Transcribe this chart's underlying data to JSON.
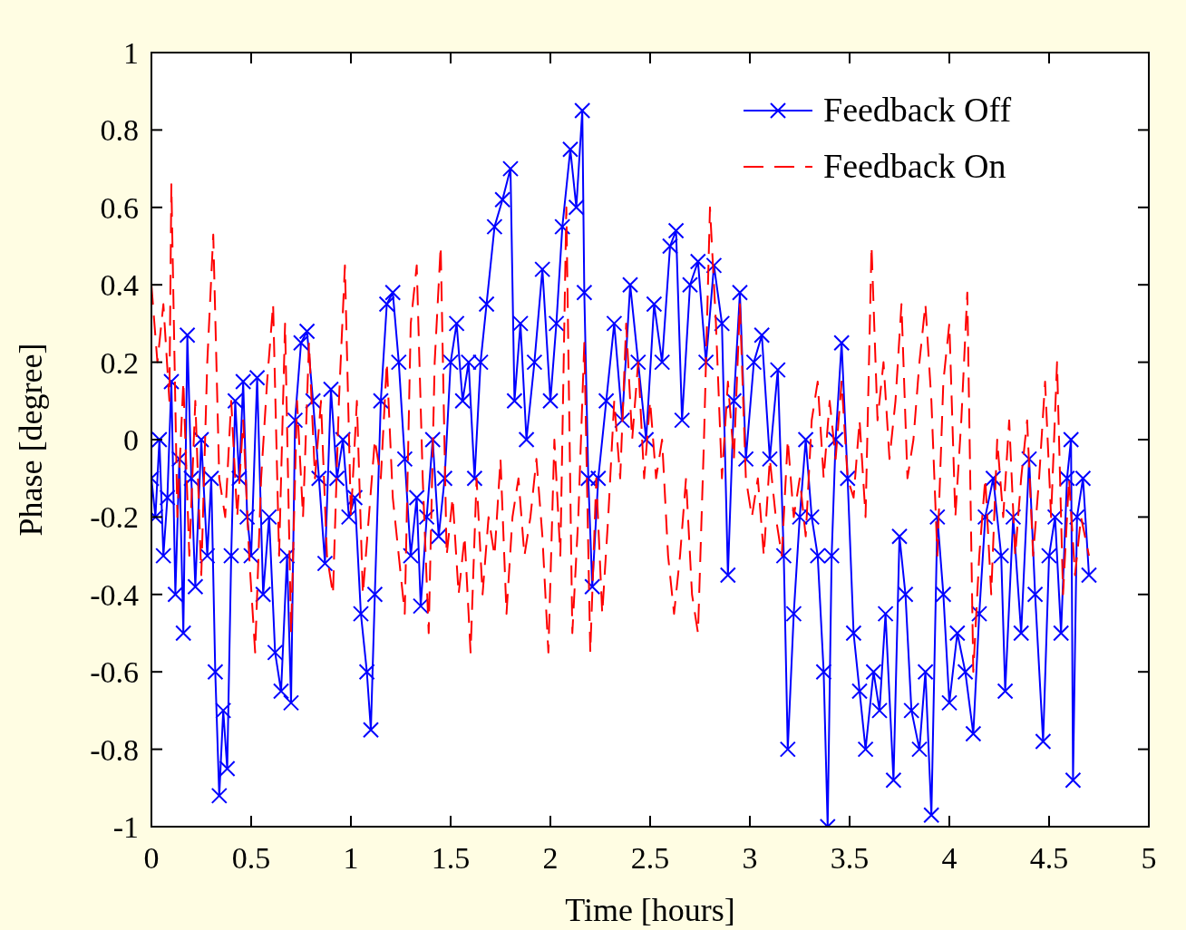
{
  "chart_data": {
    "type": "line",
    "xlabel": "Time [hours]",
    "ylabel": "Phase [degree]",
    "xlim": [
      0,
      5
    ],
    "ylim": [
      -1,
      1
    ],
    "xticks": [
      0,
      0.5,
      1,
      1.5,
      2,
      2.5,
      3,
      3.5,
      4,
      4.5,
      5
    ],
    "yticks": [
      -1,
      -0.8,
      -0.6,
      -0.4,
      -0.2,
      0,
      0.2,
      0.4,
      0.6,
      0.8,
      1
    ],
    "grid": false,
    "legend": "top right",
    "series": [
      {
        "name": "Feedback Off",
        "color": "#0000ff",
        "marker": "cross",
        "line_style": "solid",
        "x": [
          0,
          0.02,
          0.04,
          0.06,
          0.08,
          0.1,
          0.12,
          0.14,
          0.16,
          0.18,
          0.2,
          0.22,
          0.25,
          0.28,
          0.3,
          0.32,
          0.34,
          0.36,
          0.38,
          0.4,
          0.42,
          0.44,
          0.46,
          0.48,
          0.5,
          0.53,
          0.56,
          0.59,
          0.62,
          0.65,
          0.68,
          0.7,
          0.72,
          0.75,
          0.78,
          0.81,
          0.84,
          0.87,
          0.9,
          0.93,
          0.96,
          0.99,
          1.02,
          1.05,
          1.08,
          1.1,
          1.12,
          1.15,
          1.18,
          1.21,
          1.24,
          1.27,
          1.3,
          1.33,
          1.35,
          1.38,
          1.41,
          1.44,
          1.47,
          1.5,
          1.53,
          1.56,
          1.59,
          1.62,
          1.65,
          1.68,
          1.72,
          1.76,
          1.8,
          1.82,
          1.85,
          1.88,
          1.92,
          1.96,
          2,
          2.03,
          2.06,
          2.1,
          2.13,
          2.16,
          2.17,
          2.19,
          2.21,
          2.24,
          2.28,
          2.32,
          2.36,
          2.4,
          2.44,
          2.48,
          2.52,
          2.56,
          2.6,
          2.63,
          2.66,
          2.7,
          2.74,
          2.78,
          2.82,
          2.86,
          2.89,
          2.92,
          2.95,
          2.98,
          3.02,
          3.06,
          3.1,
          3.14,
          3.17,
          3.19,
          3.22,
          3.25,
          3.28,
          3.31,
          3.34,
          3.37,
          3.39,
          3.41,
          3.43,
          3.46,
          3.49,
          3.52,
          3.55,
          3.58,
          3.62,
          3.65,
          3.68,
          3.72,
          3.75,
          3.78,
          3.81,
          3.85,
          3.88,
          3.91,
          3.94,
          3.97,
          4,
          4.04,
          4.08,
          4.12,
          4.15,
          4.18,
          4.22,
          4.26,
          4.28,
          4.32,
          4.36,
          4.4,
          4.43,
          4.47,
          4.5,
          4.53,
          4.56,
          4.59,
          4.61,
          4.62,
          4.64,
          4.67,
          4.7
        ],
        "values": [
          -0.1,
          -0.2,
          0,
          -0.3,
          -0.15,
          0.15,
          -0.4,
          -0.05,
          -0.5,
          0.27,
          -0.1,
          -0.38,
          0,
          -0.3,
          -0.1,
          -0.6,
          -0.92,
          -0.7,
          -0.85,
          -0.3,
          0.1,
          -0.1,
          0.15,
          -0.2,
          -0.3,
          0.16,
          -0.4,
          -0.2,
          -0.55,
          -0.65,
          -0.3,
          -0.68,
          0.05,
          0.25,
          0.28,
          0.1,
          -0.1,
          -0.32,
          0.13,
          -0.1,
          0,
          -0.2,
          -0.15,
          -0.45,
          -0.6,
          -0.75,
          -0.4,
          0.1,
          0.35,
          0.38,
          0.2,
          -0.05,
          -0.3,
          -0.15,
          -0.43,
          -0.2,
          0,
          -0.25,
          -0.1,
          0.2,
          0.3,
          0.1,
          0.2,
          -0.1,
          0.2,
          0.35,
          0.55,
          0.62,
          0.7,
          0.1,
          0.3,
          0,
          0.2,
          0.44,
          0.1,
          0.3,
          0.55,
          0.75,
          0.6,
          0.85,
          0.38,
          -0.1,
          -0.38,
          -0.1,
          0.1,
          0.3,
          0.05,
          0.4,
          0.2,
          0,
          0.35,
          0.2,
          0.5,
          0.54,
          0.05,
          0.4,
          0.46,
          0.2,
          0.45,
          0.3,
          -0.35,
          0.1,
          0.38,
          -0.05,
          0.2,
          0.27,
          -0.05,
          0.18,
          -0.3,
          -0.8,
          -0.45,
          -0.2,
          0,
          -0.2,
          -0.3,
          -0.6,
          -1,
          -0.3,
          0,
          0.25,
          -0.1,
          -0.5,
          -0.65,
          -0.8,
          -0.6,
          -0.7,
          -0.45,
          -0.88,
          -0.25,
          -0.4,
          -0.7,
          -0.8,
          -0.6,
          -0.97,
          -0.2,
          -0.4,
          -0.68,
          -0.5,
          -0.6,
          -0.76,
          -0.45,
          -0.2,
          -0.1,
          -0.3,
          -0.65,
          -0.2,
          -0.5,
          -0.05,
          -0.4,
          -0.78,
          -0.3,
          -0.2,
          -0.5,
          -0.1,
          0,
          -0.88,
          -0.2,
          -0.1,
          -0.35
        ]
      },
      {
        "name": "Feedback On",
        "color": "#ff0000",
        "marker": "none",
        "line_style": "dashed",
        "x": [
          0,
          0.03,
          0.06,
          0.09,
          0.1,
          0.13,
          0.16,
          0.19,
          0.22,
          0.25,
          0.28,
          0.31,
          0.34,
          0.37,
          0.4,
          0.43,
          0.46,
          0.49,
          0.52,
          0.55,
          0.58,
          0.61,
          0.64,
          0.67,
          0.7,
          0.73,
          0.76,
          0.79,
          0.82,
          0.85,
          0.88,
          0.91,
          0.94,
          0.97,
          1,
          1.03,
          1.06,
          1.09,
          1.12,
          1.15,
          1.18,
          1.21,
          1.24,
          1.27,
          1.3,
          1.33,
          1.36,
          1.39,
          1.42,
          1.45,
          1.48,
          1.51,
          1.54,
          1.57,
          1.6,
          1.63,
          1.66,
          1.69,
          1.72,
          1.75,
          1.78,
          1.81,
          1.84,
          1.87,
          1.9,
          1.93,
          1.96,
          1.99,
          2.02,
          2.05,
          2.08,
          2.11,
          2.14,
          2.17,
          2.2,
          2.23,
          2.26,
          2.29,
          2.32,
          2.35,
          2.38,
          2.41,
          2.44,
          2.47,
          2.5,
          2.53,
          2.56,
          2.59,
          2.62,
          2.65,
          2.68,
          2.71,
          2.74,
          2.77,
          2.8,
          2.83,
          2.86,
          2.89,
          2.92,
          2.95,
          2.98,
          3.01,
          3.04,
          3.07,
          3.1,
          3.13,
          3.16,
          3.19,
          3.22,
          3.25,
          3.28,
          3.31,
          3.34,
          3.37,
          3.4,
          3.43,
          3.46,
          3.49,
          3.52,
          3.55,
          3.58,
          3.61,
          3.64,
          3.67,
          3.7,
          3.73,
          3.76,
          3.79,
          3.82,
          3.85,
          3.88,
          3.91,
          3.94,
          3.97,
          4,
          4.03,
          4.06,
          4.09,
          4.12,
          4.15,
          4.18,
          4.21,
          4.24,
          4.27,
          4.3,
          4.33,
          4.36,
          4.39,
          4.42,
          4.45,
          4.48,
          4.51,
          4.54,
          4.57,
          4.6,
          4.63,
          4.66,
          4.7
        ],
        "values": [
          0.4,
          0.2,
          0.35,
          0.1,
          0.66,
          -0.2,
          0.15,
          -0.3,
          0.1,
          -0.35,
          0.2,
          0.53,
          -0.1,
          -0.2,
          0.1,
          -0.2,
          0.05,
          -0.3,
          -0.55,
          -0.1,
          0.15,
          0.35,
          -0.3,
          0.3,
          -0.5,
          0.1,
          -0.2,
          0.25,
          -0.1,
          0.1,
          -0.3,
          -0.4,
          0.1,
          0.45,
          -0.2,
          0.1,
          -0.4,
          -0.2,
          0,
          -0.1,
          0.2,
          -0.15,
          -0.3,
          -0.45,
          0.3,
          0.45,
          -0.1,
          -0.5,
          0.2,
          0.5,
          -0.3,
          -0.15,
          -0.4,
          -0.25,
          -0.55,
          -0.1,
          -0.4,
          -0.2,
          -0.3,
          -0.05,
          -0.45,
          -0.2,
          -0.1,
          -0.3,
          -0.2,
          -0.05,
          -0.25,
          -0.55,
          0,
          -0.3,
          0.6,
          -0.5,
          -0.2,
          0.25,
          -0.55,
          -0.1,
          -0.45,
          -0.2,
          0.1,
          -0.1,
          0.3,
          0,
          0.2,
          -0.1,
          0.1,
          -0.1,
          0,
          -0.3,
          -0.45,
          -0.3,
          -0.1,
          -0.4,
          -0.5,
          0,
          0.6,
          0.3,
          -0.1,
          0.15,
          -0.05,
          0.35,
          -0.1,
          -0.2,
          -0.1,
          -0.3,
          -0.05,
          -0.2,
          -0.3,
          0,
          -0.2,
          -0.1,
          -0.25,
          0.05,
          0.15,
          -0.1,
          0.1,
          -0.05,
          0.15,
          -0.1,
          -0.15,
          0.05,
          -0.2,
          0.5,
          0.05,
          0.2,
          -0.05,
          0.1,
          0.35,
          -0.1,
          0,
          0.2,
          0.35,
          0.1,
          -0.3,
          0.15,
          0.3,
          -0.2,
          0.05,
          0.38,
          -0.6,
          -0.3,
          -0.1,
          -0.4,
          0,
          -0.2,
          0.05,
          -0.3,
          -0.1,
          0.05,
          -0.3,
          -0.1,
          0.15,
          -0.2,
          0.2,
          -0.4,
          -0.1,
          -0.35,
          -0.2,
          -0.3
        ]
      }
    ]
  }
}
